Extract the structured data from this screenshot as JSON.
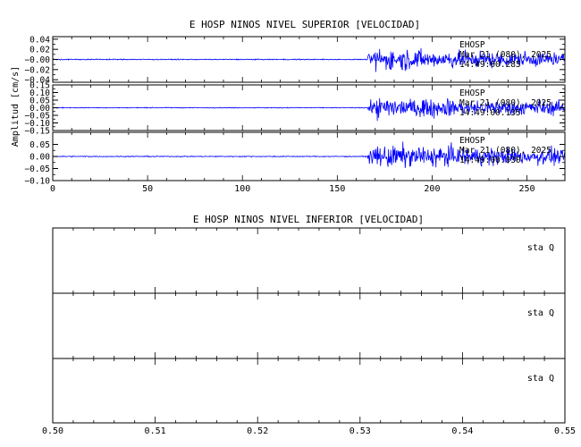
{
  "chart_data": [
    {
      "type": "line",
      "title": "E HOSP NINOS NIVEL SUPERIOR [VELOCIDAD]",
      "ylabel": "Amplitud [cm/s]",
      "xlabel": "",
      "xlim": [
        0,
        270
      ],
      "x_ticks": [
        0,
        50,
        100,
        150,
        200,
        250
      ],
      "line_color": "#0000ff",
      "signal_onset_x": 166,
      "strong_motion_x": 170,
      "panels": [
        {
          "ylim": [
            -0.045,
            0.045
          ],
          "y_ticks": [
            -0.04,
            -0.02,
            0.0,
            0.02,
            0.04
          ],
          "y_tick_labels": [
            "−0.04",
            "−0.02",
            "−0.00",
            "0.02",
            "0.04"
          ],
          "noise_amplitude": 0.0015,
          "peak_amplitude": 0.04,
          "annotation": [
            "EHOSP",
            "Mar 21 (080), 2025",
            "14:49:00.285"
          ]
        },
        {
          "ylim": [
            -0.15,
            0.15
          ],
          "y_ticks": [
            -0.15,
            -0.1,
            -0.05,
            0.0,
            0.05,
            0.1,
            0.15
          ],
          "y_tick_labels": [
            "−0.15",
            "−0.10",
            "−0.05",
            "0.00",
            "0.05",
            "0.10",
            "0.15"
          ],
          "noise_amplitude": 0.004,
          "peak_amplitude": 0.13,
          "annotation": [
            "EHOSP",
            "Mar 21 (080), 2025",
            "14:49:00.135"
          ]
        },
        {
          "ylim": [
            -0.1,
            0.1
          ],
          "y_ticks": [
            -0.1,
            -0.05,
            0.0,
            0.05
          ],
          "y_tick_labels": [
            "−0.10",
            "−0.05",
            "0.00",
            "0.05"
          ],
          "noise_amplitude": 0.003,
          "peak_amplitude": 0.09,
          "annotation": [
            "EHOSP",
            "Mar 21 (080), 2025",
            "14:49:00.930"
          ]
        }
      ]
    },
    {
      "type": "line",
      "title": "E HOSP NINOS NIVEL INFERIOR [VELOCIDAD]",
      "xlim": [
        0.5,
        0.55
      ],
      "x_ticks": [
        0.5,
        0.51,
        0.52,
        0.53,
        0.54,
        0.55
      ],
      "x_tick_labels": [
        "0.50",
        "0.51",
        "0.52",
        "0.53",
        "0.54",
        "0.55"
      ],
      "panels": [
        {
          "label": "sta   Q"
        },
        {
          "label": "sta   Q"
        },
        {
          "label": "sta   Q"
        }
      ]
    }
  ]
}
